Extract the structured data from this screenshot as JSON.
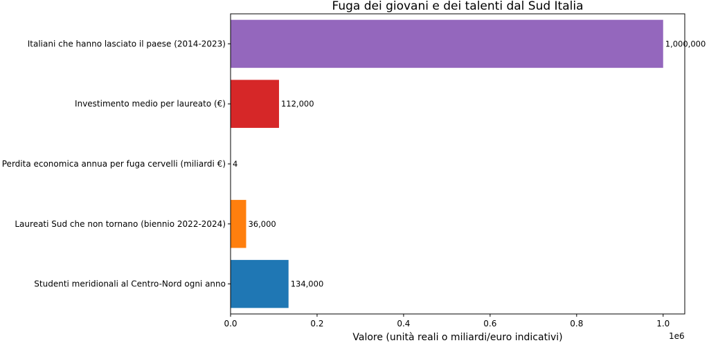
{
  "chart_data": {
    "type": "bar",
    "orientation": "horizontal",
    "title": "Fuga dei giovani e dei talenti dal Sud Italia",
    "xlabel": "Valore (unità reali o miliardi/euro indicativi)",
    "x_offset_label": "1e6",
    "xlim": [
      0,
      1050000
    ],
    "xticks": [
      0,
      200000,
      400000,
      600000,
      800000,
      1000000
    ],
    "xtick_labels": [
      "0.0",
      "0.2",
      "0.4",
      "0.6",
      "0.8",
      "1.0"
    ],
    "grid": false,
    "bars": [
      {
        "label": "Studenti meridionali al Centro-Nord ogni anno",
        "value": 134000,
        "value_label": "134,000",
        "color": "#1f77b4"
      },
      {
        "label": "Laureati Sud che non tornano (biennio 2022-2024)",
        "value": 36000,
        "value_label": "36,000",
        "color": "#ff7f0e"
      },
      {
        "label": "Perdita economica annua per fuga cervelli (miliardi €)",
        "value": 4,
        "value_label": "4",
        "color": "#2ca02c"
      },
      {
        "label": "Investimento medio per laureato (€)",
        "value": 112000,
        "value_label": "112,000",
        "color": "#d62728"
      },
      {
        "label": "Italiani che hanno lasciato il paese (2014-2023)",
        "value": 1000000,
        "value_label": "1,000,000",
        "color": "#9467bd"
      }
    ]
  }
}
